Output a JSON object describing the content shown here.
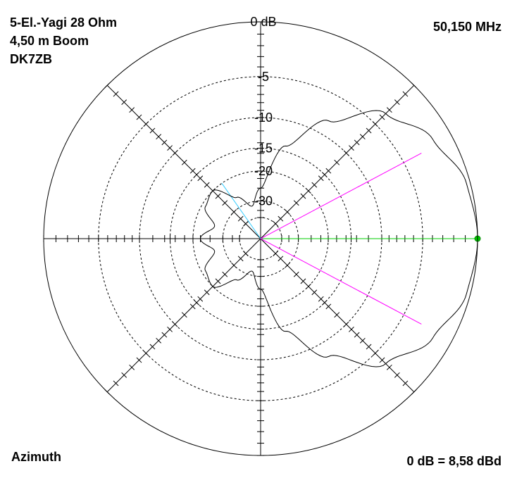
{
  "chart_data": {
    "type": "polar",
    "title_lines": [
      "5-El.-Yagi 28 Ohm",
      "4,50 m Boom",
      "DK7ZB"
    ],
    "frequency": "50,150 MHz",
    "plane_label": "Azimuth",
    "reference": "0 dB = 8,58 dBd",
    "ring_labels": [
      "0 dB",
      "-5",
      "-10",
      "-15",
      "-20",
      "-30"
    ],
    "ring_values_db": [
      0,
      -5,
      -10,
      -15,
      -20,
      -30
    ],
    "pattern": {
      "angles_deg": [
        0,
        15,
        30,
        45,
        60,
        75,
        90,
        105,
        120,
        135,
        150,
        165,
        180,
        195,
        210,
        225,
        240,
        255,
        270,
        285,
        300,
        315,
        330,
        345
      ],
      "gain_db": [
        0,
        -0.3,
        -1.5,
        -3.5,
        -8,
        -14,
        -25,
        -32,
        -26,
        -20,
        -21,
        -26,
        -22,
        -26,
        -21,
        -20,
        -26,
        -32,
        -25,
        -14,
        -8,
        -3.5,
        -1.5,
        -0.3
      ]
    },
    "markers": {
      "max_direction_deg": 0,
      "half_power_deg": [
        -28,
        28
      ],
      "rear_lobe_deg": 125,
      "max_color": "#00cc00",
      "beamwidth_color": "#ff00ff",
      "rear_color": "#33ccff"
    }
  }
}
